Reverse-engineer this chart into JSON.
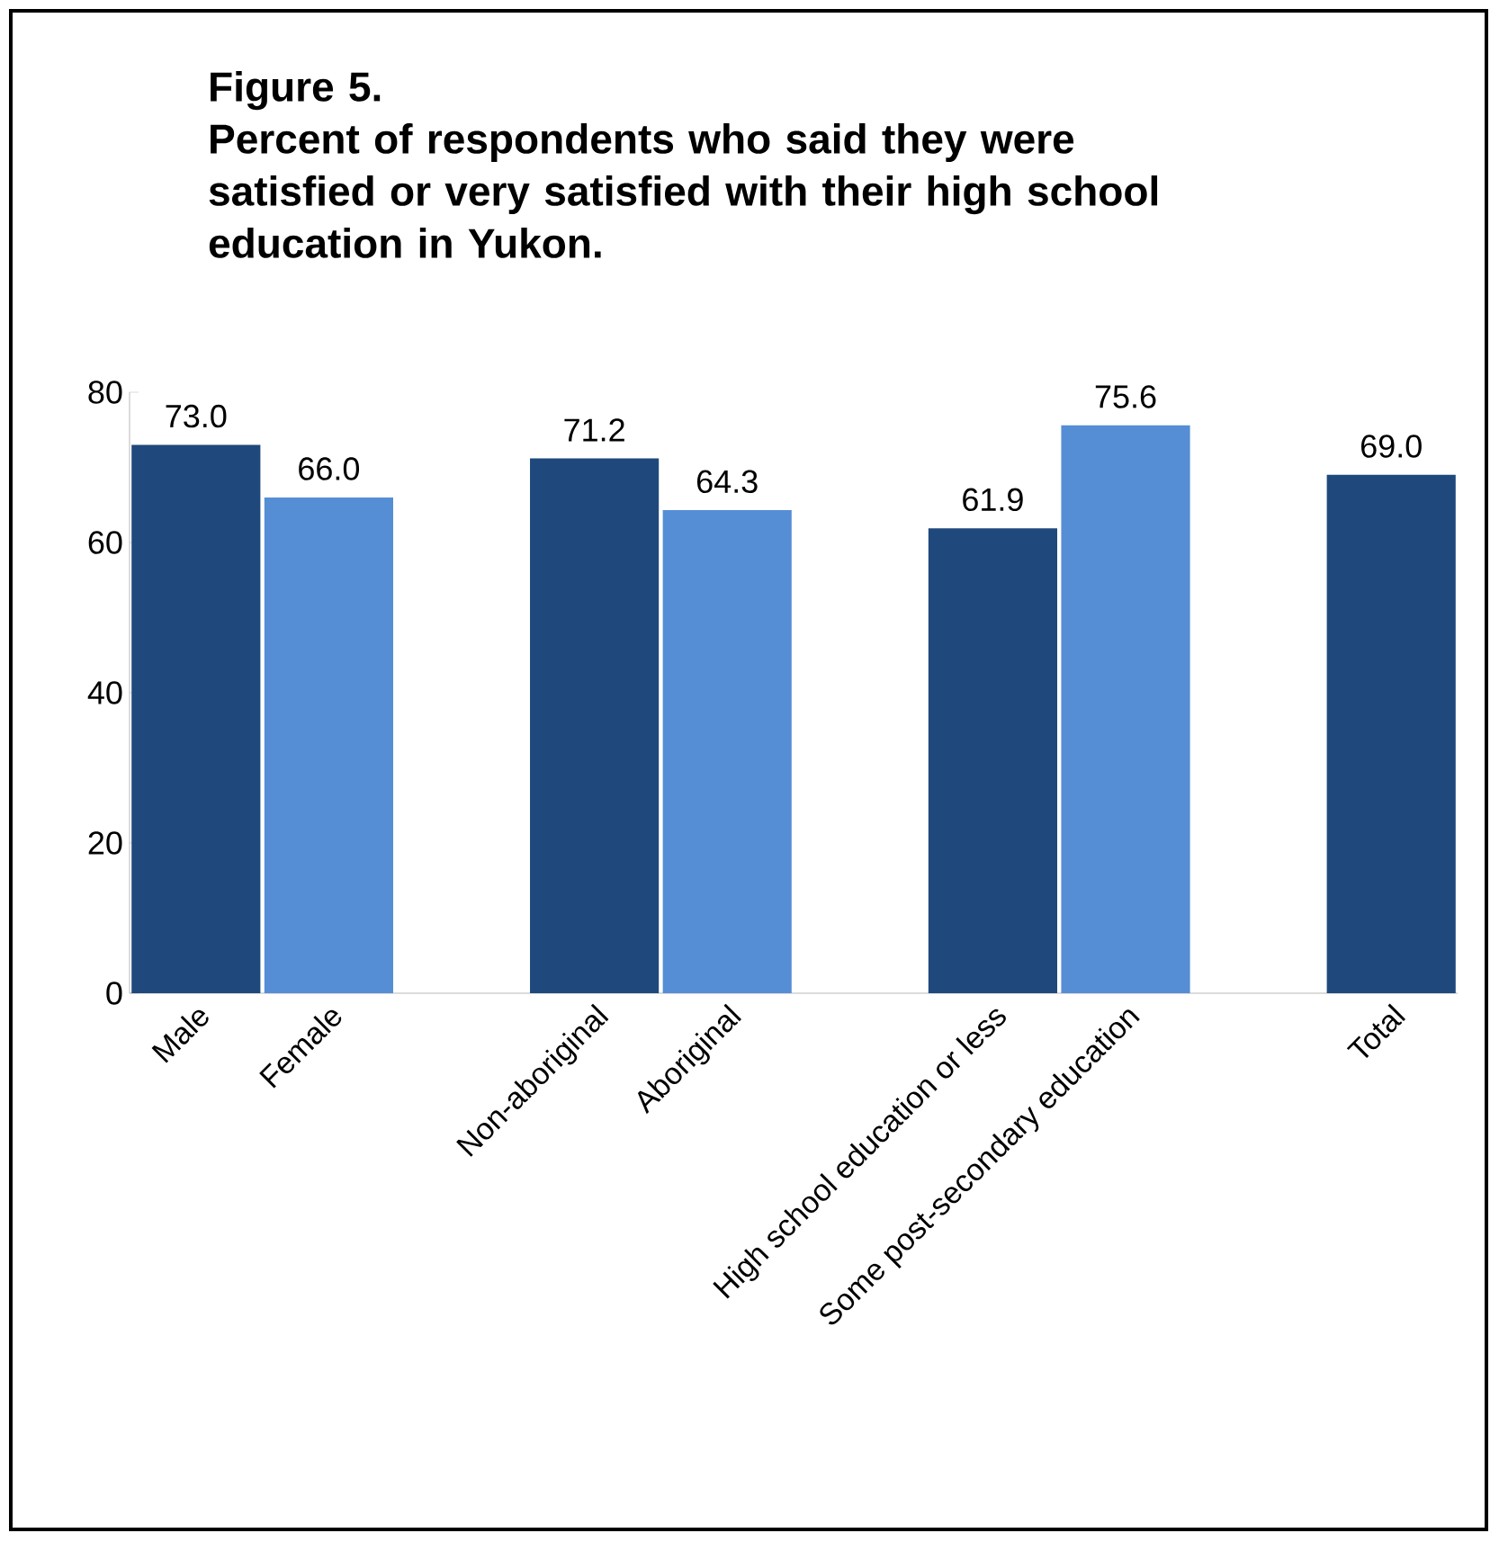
{
  "chart_data": {
    "type": "bar",
    "title": "Figure 5.",
    "subtitle": "Percent of respondents who said they were satisfied or very satisfied with their high school education in Yukon.",
    "categories": [
      "Male",
      "Female",
      null,
      "Non-aboriginal",
      "Aboriginal",
      null,
      "High school education or less",
      "Some post-secondary education",
      null,
      "Total"
    ],
    "values": [
      73.0,
      66.0,
      null,
      71.2,
      64.3,
      null,
      61.9,
      75.6,
      null,
      69.0
    ],
    "value_labels": [
      "73.0",
      "66.0",
      null,
      "71.2",
      "64.3",
      null,
      "61.9",
      "75.6",
      null,
      "69.0"
    ],
    "colors": [
      "#1f497d",
      "#558ed5",
      null,
      "#1f497d",
      "#558ed5",
      null,
      "#1f497d",
      "#558ed5",
      null,
      "#1f497d"
    ],
    "ylim": [
      0,
      80
    ],
    "yticks": [
      0,
      20,
      40,
      60,
      80
    ]
  }
}
